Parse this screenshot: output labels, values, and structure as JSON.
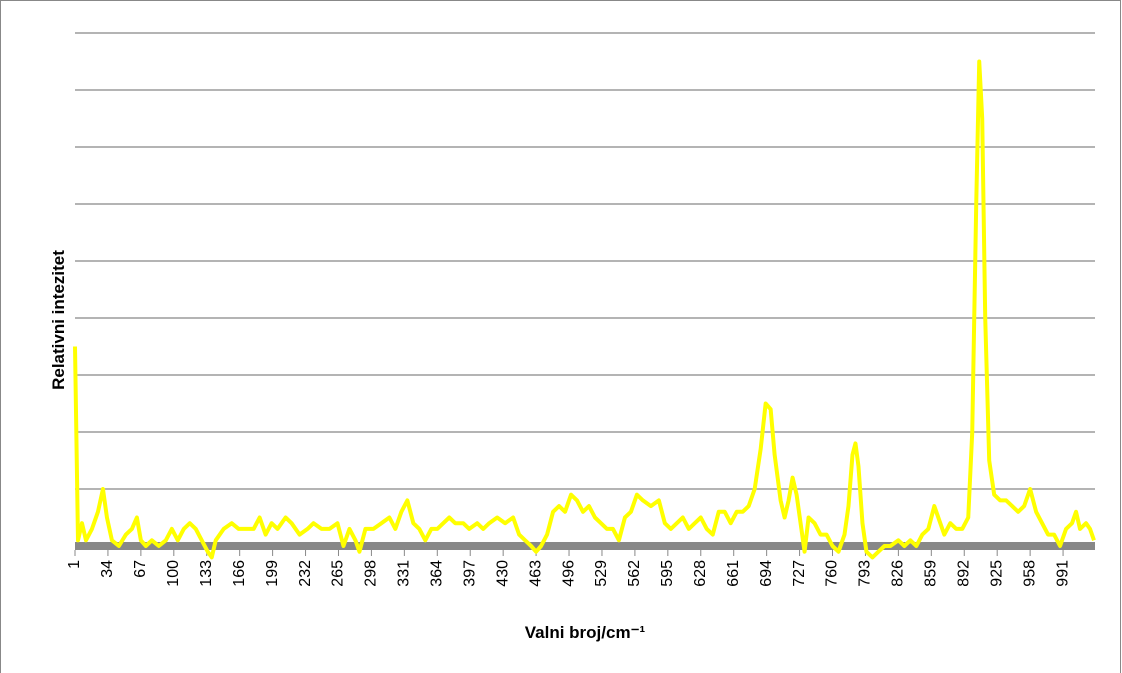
{
  "chart_data": {
    "type": "line",
    "y_label": "Relativni intezitet",
    "x_label": "Valni broj/cm⁻¹",
    "xlim": [
      1,
      1023
    ],
    "xticks": [
      1,
      34,
      67,
      100,
      133,
      166,
      199,
      232,
      265,
      298,
      331,
      364,
      397,
      430,
      463,
      496,
      529,
      562,
      595,
      628,
      661,
      694,
      727,
      760,
      793,
      826,
      859,
      892,
      925,
      958,
      991
    ],
    "ylim": [
      -0.3,
      9.2
    ],
    "yticks": [
      0,
      1,
      2,
      3,
      4,
      5,
      6,
      7,
      8,
      9
    ],
    "grid": true,
    "series": [
      {
        "color": "#ffff00",
        "x": [
          1,
          4,
          8,
          12,
          18,
          24,
          29,
          33,
          38,
          45,
          52,
          58,
          63,
          67,
          72,
          78,
          85,
          92,
          98,
          104,
          110,
          116,
          122,
          128,
          134,
          138,
          142,
          150,
          158,
          165,
          172,
          180,
          186,
          192,
          198,
          204,
          212,
          218,
          226,
          234,
          240,
          248,
          256,
          264,
          270,
          276,
          282,
          286,
          292,
          300,
          308,
          316,
          322,
          328,
          334,
          340,
          346,
          352,
          358,
          364,
          370,
          376,
          382,
          390,
          396,
          404,
          410,
          416,
          424,
          432,
          440,
          446,
          452,
          458,
          463,
          468,
          474,
          480,
          486,
          492,
          498,
          504,
          510,
          516,
          522,
          528,
          534,
          540,
          546,
          552,
          558,
          564,
          570,
          578,
          586,
          592,
          598,
          604,
          610,
          616,
          622,
          628,
          634,
          640,
          646,
          652,
          658,
          664,
          670,
          676,
          682,
          688,
          693,
          698,
          702,
          708,
          712,
          716,
          720,
          724,
          728,
          732,
          736,
          742,
          748,
          754,
          760,
          766,
          772,
          776,
          780,
          783,
          786,
          790,
          794,
          800,
          806,
          812,
          818,
          826,
          832,
          838,
          844,
          850,
          856,
          862,
          868,
          872,
          878,
          884,
          890,
          896,
          900,
          904,
          907,
          910,
          913,
          917,
          922,
          928,
          934,
          940,
          946,
          952,
          958,
          964,
          970,
          976,
          982,
          988,
          994,
          1000,
          1004,
          1008,
          1014,
          1018,
          1022
        ],
        "values": [
          3.5,
          0.1,
          0.4,
          0.1,
          0.3,
          0.6,
          1.0,
          0.5,
          0.1,
          0.0,
          0.2,
          0.3,
          0.5,
          0.1,
          0.0,
          0.1,
          0.0,
          0.1,
          0.3,
          0.1,
          0.3,
          0.4,
          0.3,
          0.1,
          -0.1,
          -0.2,
          0.1,
          0.3,
          0.4,
          0.3,
          0.3,
          0.3,
          0.5,
          0.2,
          0.4,
          0.3,
          0.5,
          0.4,
          0.2,
          0.3,
          0.4,
          0.3,
          0.3,
          0.4,
          0.0,
          0.3,
          0.1,
          -0.1,
          0.3,
          0.3,
          0.4,
          0.5,
          0.3,
          0.6,
          0.8,
          0.4,
          0.3,
          0.1,
          0.3,
          0.3,
          0.4,
          0.5,
          0.4,
          0.4,
          0.3,
          0.4,
          0.3,
          0.4,
          0.5,
          0.4,
          0.5,
          0.2,
          0.1,
          0.0,
          -0.1,
          0.0,
          0.2,
          0.6,
          0.7,
          0.6,
          0.9,
          0.8,
          0.6,
          0.7,
          0.5,
          0.4,
          0.3,
          0.3,
          0.1,
          0.5,
          0.6,
          0.9,
          0.8,
          0.7,
          0.8,
          0.4,
          0.3,
          0.4,
          0.5,
          0.3,
          0.4,
          0.5,
          0.3,
          0.2,
          0.6,
          0.6,
          0.4,
          0.6,
          0.6,
          0.7,
          1.0,
          1.7,
          2.5,
          2.4,
          1.6,
          0.8,
          0.5,
          0.8,
          1.2,
          0.9,
          0.4,
          -0.1,
          0.5,
          0.4,
          0.2,
          0.2,
          0.0,
          -0.1,
          0.2,
          0.7,
          1.6,
          1.8,
          1.4,
          0.4,
          -0.1,
          -0.2,
          -0.1,
          0.0,
          0.0,
          0.1,
          0.0,
          0.1,
          0.0,
          0.2,
          0.3,
          0.7,
          0.4,
          0.2,
          0.4,
          0.3,
          0.3,
          0.5,
          2.0,
          6.0,
          8.5,
          7.5,
          4.0,
          1.5,
          0.9,
          0.8,
          0.8,
          0.7,
          0.6,
          0.7,
          1.0,
          0.6,
          0.4,
          0.2,
          0.2,
          0.0,
          0.3,
          0.4,
          0.6,
          0.3,
          0.4,
          0.3,
          0.1
        ]
      }
    ]
  }
}
